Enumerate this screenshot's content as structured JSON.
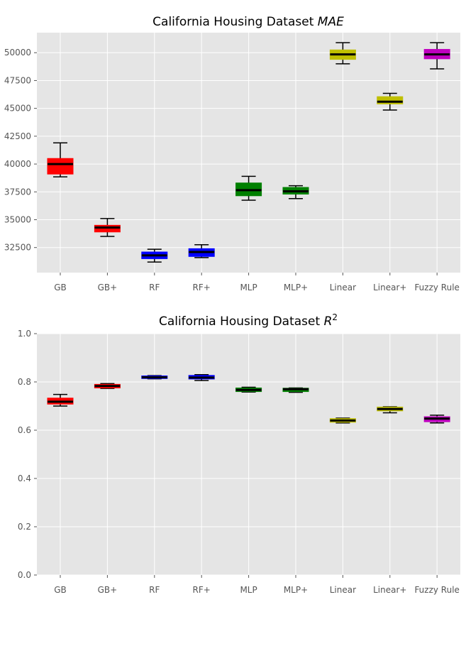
{
  "chart_data": [
    {
      "type": "box",
      "title": "California Housing Dataset ",
      "title_math": "MAE",
      "title_sup": "",
      "categories": [
        "GB",
        "GB+",
        "RF",
        "RF+",
        "MLP",
        "MLP+",
        "Linear",
        "Linear+",
        "Fuzzy Rule"
      ],
      "colors": [
        "#ff0000",
        "#ff0000",
        "#0000ff",
        "#0000ff",
        "#008000",
        "#008000",
        "#bfbf00",
        "#bfbf00",
        "#bf00bf"
      ],
      "boxes": [
        {
          "whislo": 38850,
          "q1": 39100,
          "med": 40000,
          "q3": 40500,
          "whishi": 41900
        },
        {
          "whislo": 33500,
          "q1": 33900,
          "med": 34300,
          "q3": 34500,
          "whishi": 35100
        },
        {
          "whislo": 31200,
          "q1": 31500,
          "med": 31800,
          "q3": 32100,
          "whishi": 32350
        },
        {
          "whislo": 31600,
          "q1": 31700,
          "med": 32100,
          "q3": 32400,
          "whishi": 32750
        },
        {
          "whislo": 36750,
          "q1": 37150,
          "med": 37650,
          "q3": 38300,
          "whishi": 38900
        },
        {
          "whislo": 36900,
          "q1": 37300,
          "med": 37550,
          "q3": 37900,
          "whishi": 38050
        },
        {
          "whislo": 49000,
          "q1": 49400,
          "med": 49850,
          "q3": 50250,
          "whishi": 50900
        },
        {
          "whislo": 44850,
          "q1": 45400,
          "med": 45600,
          "q3": 46050,
          "whishi": 46350
        },
        {
          "whislo": 48550,
          "q1": 49450,
          "med": 49850,
          "q3": 50300,
          "whishi": 50900
        }
      ],
      "ylim": [
        30250,
        51800
      ],
      "yticks": [
        32500,
        35000,
        37500,
        40000,
        42500,
        45000,
        47500,
        50000
      ],
      "ytick_labels": [
        "32500",
        "35000",
        "37500",
        "40000",
        "42500",
        "45000",
        "47500",
        "50000"
      ],
      "grid": true
    },
    {
      "type": "box",
      "title": "California Housing Dataset ",
      "title_math": "R",
      "title_sup": "2",
      "categories": [
        "GB",
        "GB+",
        "RF",
        "RF+",
        "MLP",
        "MLP+",
        "Linear",
        "Linear+",
        "Fuzzy Rule"
      ],
      "colors": [
        "#ff0000",
        "#ff0000",
        "#0000ff",
        "#0000ff",
        "#008000",
        "#008000",
        "#bfbf00",
        "#bfbf00",
        "#bf00bf"
      ],
      "boxes": [
        {
          "whislo": 0.7,
          "q1": 0.708,
          "med": 0.718,
          "q3": 0.733,
          "whishi": 0.748
        },
        {
          "whislo": 0.773,
          "q1": 0.775,
          "med": 0.783,
          "q3": 0.79,
          "whishi": 0.793
        },
        {
          "whislo": 0.813,
          "q1": 0.814,
          "med": 0.819,
          "q3": 0.825,
          "whishi": 0.826
        },
        {
          "whislo": 0.806,
          "q1": 0.812,
          "med": 0.818,
          "q3": 0.827,
          "whishi": 0.83
        },
        {
          "whislo": 0.758,
          "q1": 0.76,
          "med": 0.767,
          "q3": 0.775,
          "whishi": 0.778
        },
        {
          "whislo": 0.757,
          "q1": 0.76,
          "med": 0.77,
          "q3": 0.774,
          "whishi": 0.775
        },
        {
          "whislo": 0.63,
          "q1": 0.633,
          "med": 0.64,
          "q3": 0.648,
          "whishi": 0.65
        },
        {
          "whislo": 0.672,
          "q1": 0.68,
          "med": 0.688,
          "q3": 0.696,
          "whishi": 0.697
        },
        {
          "whislo": 0.63,
          "q1": 0.635,
          "med": 0.648,
          "q3": 0.656,
          "whishi": 0.662
        }
      ],
      "ylim": [
        0.0,
        1.0
      ],
      "yticks": [
        0.0,
        0.2,
        0.4,
        0.6,
        0.8,
        1.0
      ],
      "ytick_labels": [
        "0.0",
        "0.2",
        "0.4",
        "0.6",
        "0.8",
        "1.0"
      ],
      "grid": true
    }
  ]
}
